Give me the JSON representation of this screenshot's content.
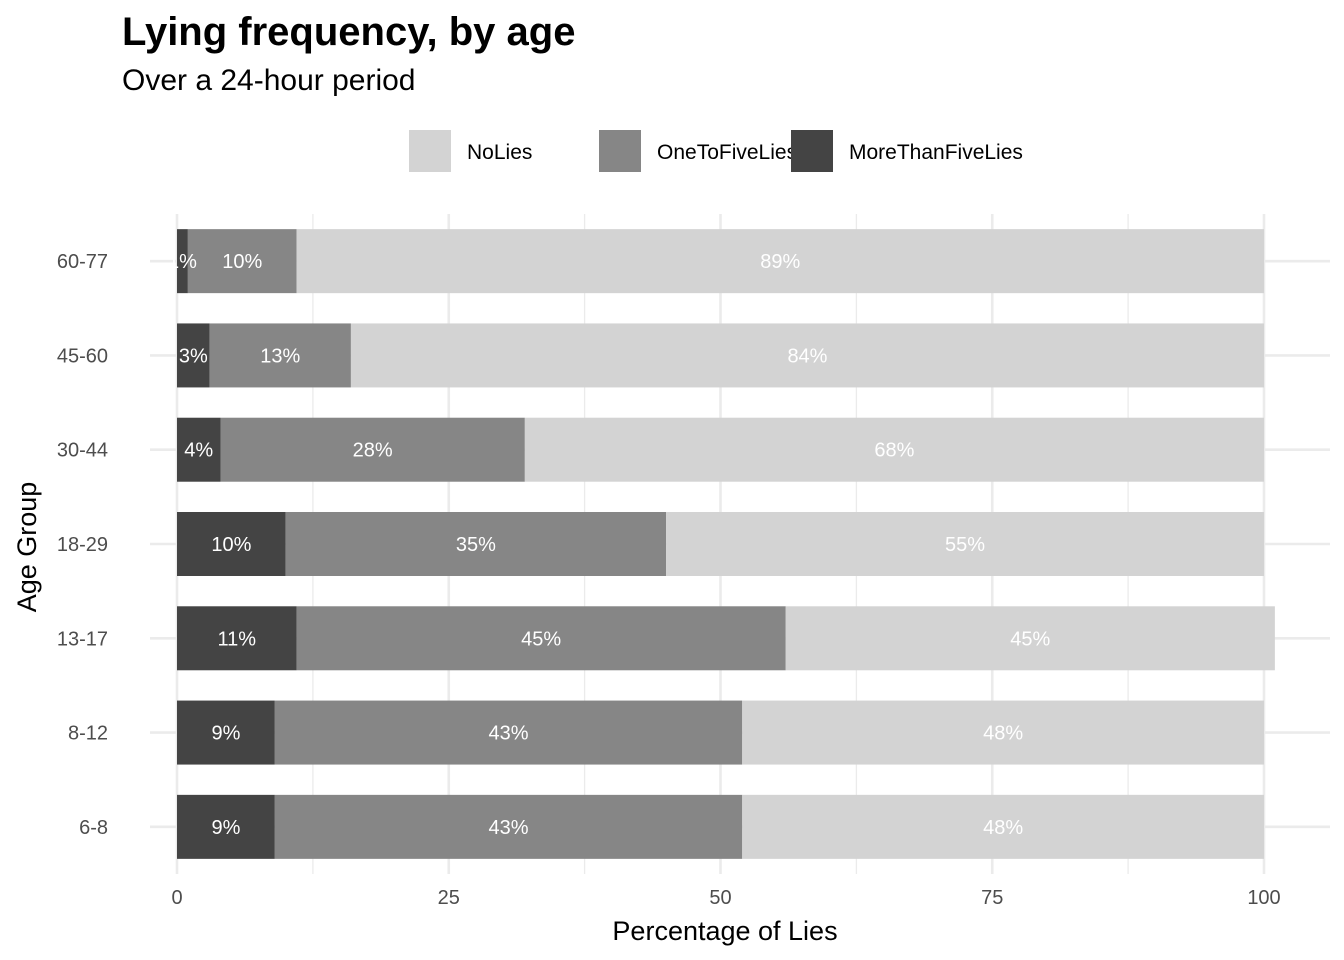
{
  "chart_data": {
    "type": "bar",
    "orientation": "horizontal",
    "stacked": true,
    "title": "Lying frequency, by age",
    "subtitle": "Over a 24-hour period",
    "xlabel": "Percentage of Lies",
    "ylabel": "Age Group",
    "xlim": [
      0,
      100
    ],
    "x_ticks": [
      0,
      25,
      50,
      75,
      100
    ],
    "grid": true,
    "legend_position": "top",
    "categories": [
      "6-8",
      "8-12",
      "13-17",
      "18-29",
      "30-44",
      "45-60",
      "60-77"
    ],
    "series": [
      {
        "name": "MoreThanFiveLies",
        "color": "#444444",
        "values": [
          9,
          9,
          11,
          10,
          4,
          3,
          1
        ],
        "labels": [
          "9%",
          "9%",
          "11%",
          "10%",
          "4%",
          "3%",
          "1%"
        ]
      },
      {
        "name": "OneToFiveLies",
        "color": "#868686",
        "values": [
          43,
          43,
          45,
          35,
          28,
          13,
          10
        ],
        "labels": [
          "43%",
          "43%",
          "45%",
          "35%",
          "28%",
          "13%",
          "10%"
        ]
      },
      {
        "name": "NoLies",
        "color": "#d3d3d3",
        "values": [
          48,
          48,
          45,
          55,
          68,
          84,
          89
        ],
        "labels": [
          "48%",
          "48%",
          "45%",
          "55%",
          "68%",
          "84%",
          "89%"
        ]
      }
    ],
    "legend_order": [
      "NoLies",
      "OneToFiveLies",
      "MoreThanFiveLies"
    ],
    "grid_color": "#ebebeb",
    "label_color": "#ffffff"
  }
}
